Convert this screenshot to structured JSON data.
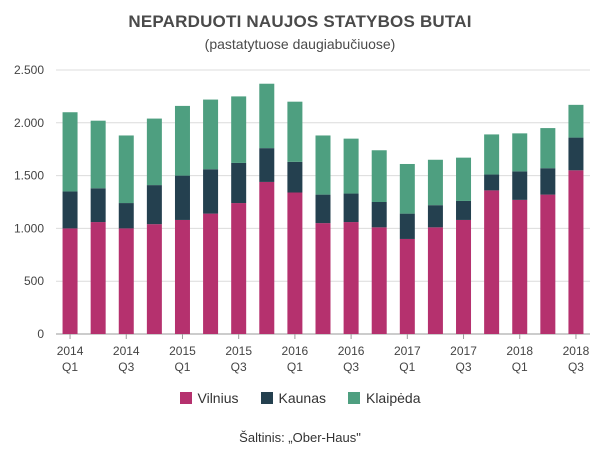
{
  "chart_data": {
    "type": "bar",
    "stacked": true,
    "title": "NEPARDUOTI NAUJOS STATYBOS BUTAI",
    "subtitle": "(pastatytuose daugiabučiuose)",
    "ylim": [
      0,
      2500
    ],
    "yticks": [
      0,
      500,
      1000,
      1500,
      2000,
      2500
    ],
    "ytick_labels": [
      "0",
      "500",
      "1.000",
      "1.500",
      "2.000",
      "2.500"
    ],
    "grid": true,
    "legend_position": "bottom",
    "categories": [
      "2014 Q1",
      "2014 Q2",
      "2014 Q3",
      "2014 Q4",
      "2015 Q1",
      "2015 Q2",
      "2015 Q3",
      "2015 Q4",
      "2016 Q1",
      "2016 Q2",
      "2016 Q3",
      "2016 Q4",
      "2017 Q1",
      "2017 Q2",
      "2017 Q3",
      "2017 Q4",
      "2018 Q1",
      "2018 Q2",
      "2018 Q3"
    ],
    "x_labels": [
      {
        "index": 0,
        "year": "2014",
        "quarter": "Q1"
      },
      {
        "index": 2,
        "year": "2014",
        "quarter": "Q3"
      },
      {
        "index": 4,
        "year": "2015",
        "quarter": "Q1"
      },
      {
        "index": 6,
        "year": "2015",
        "quarter": "Q3"
      },
      {
        "index": 8,
        "year": "2016",
        "quarter": "Q1"
      },
      {
        "index": 10,
        "year": "2016",
        "quarter": "Q3"
      },
      {
        "index": 12,
        "year": "2017",
        "quarter": "Q1"
      },
      {
        "index": 14,
        "year": "2017",
        "quarter": "Q3"
      },
      {
        "index": 16,
        "year": "2018",
        "quarter": "Q1"
      },
      {
        "index": 18,
        "year": "2018",
        "quarter": "Q3"
      }
    ],
    "series": [
      {
        "name": "Vilnius",
        "color": "#b5316e",
        "values": [
          1000,
          1060,
          1000,
          1040,
          1080,
          1140,
          1240,
          1440,
          1340,
          1050,
          1060,
          1010,
          900,
          1010,
          1080,
          1360,
          1270,
          1320,
          1550
        ]
      },
      {
        "name": "Kaunas",
        "color": "#24404f",
        "values": [
          350,
          320,
          240,
          370,
          420,
          420,
          380,
          320,
          290,
          270,
          270,
          240,
          240,
          210,
          180,
          150,
          270,
          250,
          310
        ]
      },
      {
        "name": "Klaipėda",
        "color": "#4e9f80",
        "values": [
          750,
          640,
          640,
          630,
          660,
          660,
          630,
          610,
          570,
          560,
          520,
          490,
          470,
          430,
          410,
          380,
          360,
          380,
          310
        ]
      }
    ]
  },
  "source": "Šaltinis: „Ober-Haus\""
}
